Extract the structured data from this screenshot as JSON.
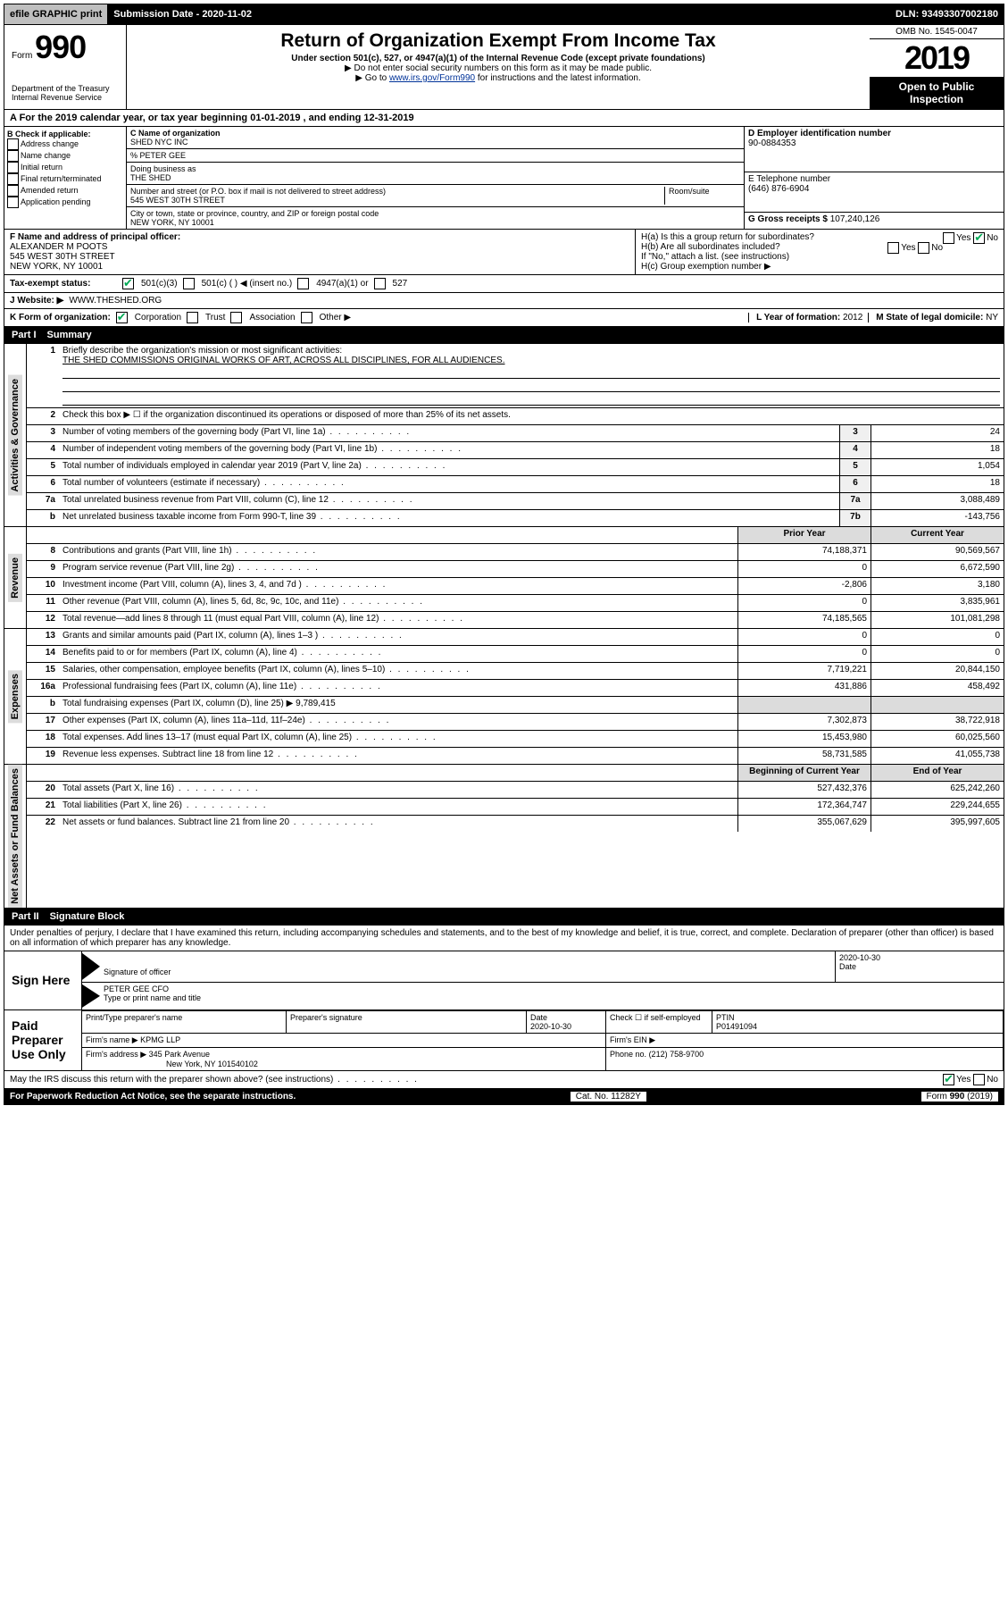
{
  "topBar": {
    "efile": "efile GRAPHIC print",
    "submission_label": "Submission Date - 2020-11-02",
    "dln": "DLN: 93493307002180"
  },
  "header": {
    "form_prefix": "Form",
    "form_number": "990",
    "title": "Return of Organization Exempt From Income Tax",
    "subtitle": "Under section 501(c), 527, or 4947(a)(1) of the Internal Revenue Code (except private foundations)",
    "note1": "▶ Do not enter social security numbers on this form as it may be made public.",
    "note2_pre": "▶ Go to ",
    "note2_link": "www.irs.gov/Form990",
    "note2_post": " for instructions and the latest information.",
    "omb": "OMB No. 1545-0047",
    "year": "2019",
    "open": "Open to Public Inspection",
    "dept": "Department of the Treasury Internal Revenue Service"
  },
  "rowA": {
    "text_pre": "A For the 2019 calendar year, or tax year beginning ",
    "begin": "01-01-2019",
    "mid": " , and ending ",
    "end": "12-31-2019"
  },
  "boxB": {
    "label": "B Check if applicable:",
    "items": [
      "Address change",
      "Name change",
      "Initial return",
      "Final return/terminated",
      "Amended return",
      "Application pending"
    ]
  },
  "boxC": {
    "name_label": "C Name of organization",
    "name": "SHED NYC INC",
    "care_of": "% PETER GEE",
    "dba_label": "Doing business as",
    "dba": "THE SHED",
    "street_label": "Number and street (or P.O. box if mail is not delivered to street address)",
    "room_label": "Room/suite",
    "street": "545 WEST 30TH STREET",
    "city_label": "City or town, state or province, country, and ZIP or foreign postal code",
    "city": "NEW YORK, NY  10001"
  },
  "boxD": {
    "label": "D Employer identification number",
    "ein": "90-0884353"
  },
  "boxE": {
    "label": "E Telephone number",
    "phone": "(646) 876-6904"
  },
  "boxG": {
    "label": "G Gross receipts $",
    "amount": "107,240,126"
  },
  "boxF": {
    "label": "F Name and address of principal officer:",
    "name": "ALEXANDER M POOTS",
    "street": "545 WEST 30TH STREET",
    "city": "NEW YORK, NY  10001"
  },
  "boxH": {
    "a": "H(a)  Is this a group return for subordinates?",
    "b": "H(b)  Are all subordinates included?",
    "b_note": "If \"No,\" attach a list. (see instructions)",
    "c": "H(c)  Group exemption number ▶",
    "yes": "Yes",
    "no": "No"
  },
  "taxStatus": {
    "label": "Tax-exempt status:",
    "opts": [
      "501(c)(3)",
      "501(c) (  ) ◀ (insert no.)",
      "4947(a)(1) or",
      "527"
    ]
  },
  "website": {
    "label": "J   Website: ▶",
    "url": "WWW.THESHED.ORG"
  },
  "boxK": {
    "label": "K Form of organization:",
    "opts": [
      "Corporation",
      "Trust",
      "Association",
      "Other ▶"
    ]
  },
  "boxL": {
    "label": "L Year of formation:",
    "val": "2012"
  },
  "boxM": {
    "label": "M State of legal domicile:",
    "val": "NY"
  },
  "part1": {
    "label": "Part I",
    "title": "Summary"
  },
  "summary": {
    "sections": [
      {
        "vlabel": "Activities & Governance",
        "lines": [
          {
            "n": "1",
            "d": "Briefly describe the organization's mission or most significant activities:",
            "text": "THE SHED COMMISSIONS ORIGINAL WORKS OF ART, ACROSS ALL DISCIPLINES, FOR ALL AUDIENCES.",
            "blanks": 3
          },
          {
            "n": "2",
            "d": "Check this box ▶ ☐ if the organization discontinued its operations or disposed of more than 25% of its net assets."
          },
          {
            "n": "3",
            "d": "Number of voting members of the governing body (Part VI, line 1a)",
            "m": "3",
            "v": "24"
          },
          {
            "n": "4",
            "d": "Number of independent voting members of the governing body (Part VI, line 1b)",
            "m": "4",
            "v": "18"
          },
          {
            "n": "5",
            "d": "Total number of individuals employed in calendar year 2019 (Part V, line 2a)",
            "m": "5",
            "v": "1,054"
          },
          {
            "n": "6",
            "d": "Total number of volunteers (estimate if necessary)",
            "m": "6",
            "v": "18"
          },
          {
            "n": "7a",
            "d": "Total unrelated business revenue from Part VIII, column (C), line 12",
            "m": "7a",
            "v": "3,088,489"
          },
          {
            "n": "b",
            "d": "Net unrelated business taxable income from Form 990-T, line 39",
            "m": "7b",
            "v": "-143,756"
          }
        ]
      },
      {
        "vlabel": "Revenue",
        "header": {
          "p": "Prior Year",
          "c": "Current Year"
        },
        "lines": [
          {
            "n": "8",
            "d": "Contributions and grants (Part VIII, line 1h)",
            "p": "74,188,371",
            "c": "90,569,567"
          },
          {
            "n": "9",
            "d": "Program service revenue (Part VIII, line 2g)",
            "p": "0",
            "c": "6,672,590"
          },
          {
            "n": "10",
            "d": "Investment income (Part VIII, column (A), lines 3, 4, and 7d )",
            "p": "-2,806",
            "c": "3,180"
          },
          {
            "n": "11",
            "d": "Other revenue (Part VIII, column (A), lines 5, 6d, 8c, 9c, 10c, and 11e)",
            "p": "0",
            "c": "3,835,961"
          },
          {
            "n": "12",
            "d": "Total revenue—add lines 8 through 11 (must equal Part VIII, column (A), line 12)",
            "p": "74,185,565",
            "c": "101,081,298"
          }
        ]
      },
      {
        "vlabel": "Expenses",
        "lines": [
          {
            "n": "13",
            "d": "Grants and similar amounts paid (Part IX, column (A), lines 1–3 )",
            "p": "0",
            "c": "0"
          },
          {
            "n": "14",
            "d": "Benefits paid to or for members (Part IX, column (A), line 4)",
            "p": "0",
            "c": "0"
          },
          {
            "n": "15",
            "d": "Salaries, other compensation, employee benefits (Part IX, column (A), lines 5–10)",
            "p": "7,719,221",
            "c": "20,844,150"
          },
          {
            "n": "16a",
            "d": "Professional fundraising fees (Part IX, column (A), line 11e)",
            "p": "431,886",
            "c": "458,492"
          },
          {
            "n": "b",
            "d": "Total fundraising expenses (Part IX, column (D), line 25) ▶ 9,789,415",
            "noval": true
          },
          {
            "n": "17",
            "d": "Other expenses (Part IX, column (A), lines 11a–11d, 11f–24e)",
            "p": "7,302,873",
            "c": "38,722,918"
          },
          {
            "n": "18",
            "d": "Total expenses. Add lines 13–17 (must equal Part IX, column (A), line 25)",
            "p": "15,453,980",
            "c": "60,025,560"
          },
          {
            "n": "19",
            "d": "Revenue less expenses. Subtract line 18 from line 12",
            "p": "58,731,585",
            "c": "41,055,738"
          }
        ]
      },
      {
        "vlabel": "Net Assets or Fund Balances",
        "header": {
          "p": "Beginning of Current Year",
          "c": "End of Year"
        },
        "lines": [
          {
            "n": "20",
            "d": "Total assets (Part X, line 16)",
            "p": "527,432,376",
            "c": "625,242,260"
          },
          {
            "n": "21",
            "d": "Total liabilities (Part X, line 26)",
            "p": "172,364,747",
            "c": "229,244,655"
          },
          {
            "n": "22",
            "d": "Net assets or fund balances. Subtract line 21 from line 20",
            "p": "355,067,629",
            "c": "395,997,605"
          }
        ]
      }
    ]
  },
  "part2": {
    "label": "Part II",
    "title": "Signature Block"
  },
  "perjury": "Under penalties of perjury, I declare that I have examined this return, including accompanying schedules and statements, and to the best of my knowledge and belief, it is true, correct, and complete. Declaration of preparer (other than officer) is based on all information of which preparer has any knowledge.",
  "sign": {
    "here": "Sign Here",
    "sig_label": "Signature of officer",
    "date": "2020-10-30",
    "date_label": "Date",
    "name": "PETER GEE CFO",
    "name_label": "Type or print name and title"
  },
  "paid": {
    "label": "Paid Preparer Use Only",
    "h1": "Print/Type preparer's name",
    "h2": "Preparer's signature",
    "h3": "Date",
    "date": "2020-10-30",
    "h4": "Check ☐ if self-employed",
    "h5": "PTIN",
    "ptin": "P01491094",
    "firm_name_label": "Firm's name    ▶",
    "firm_name": "KPMG LLP",
    "firm_ein_label": "Firm's EIN ▶",
    "firm_addr_label": "Firm's address ▶",
    "firm_addr1": "345 Park Avenue",
    "firm_addr2": "New York, NY  101540102",
    "firm_phone_label": "Phone no.",
    "firm_phone": "(212) 758-9700"
  },
  "discuss": {
    "q": "May the IRS discuss this return with the preparer shown above? (see instructions)",
    "yes": "Yes",
    "no": "No"
  },
  "footer": {
    "left": "For Paperwork Reduction Act Notice, see the separate instructions.",
    "mid": "Cat. No. 11282Y",
    "right": "Form 990 (2019)"
  }
}
